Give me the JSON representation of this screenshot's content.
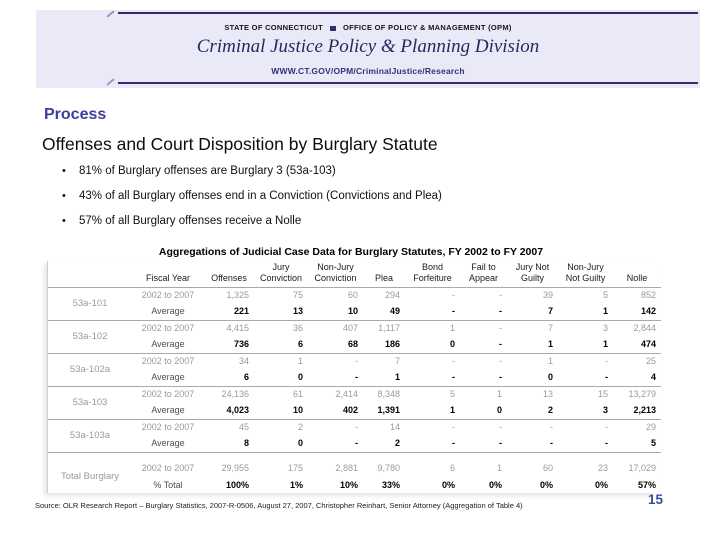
{
  "header": {
    "agency_left": "STATE OF CONNECTICUT",
    "agency_right": "OFFICE OF POLICY & MANAGEMENT (OPM)",
    "division_title": "Criminal Justice Policy & Planning Division",
    "url": "WWW.CT.GOV/OPM/CriminalJustice/Research"
  },
  "section_title": "Process",
  "slide_title": "Offenses and Court Disposition by Burglary Statute",
  "bullets": [
    "81% of Burglary offenses are Burglary 3 (53a-103)",
    "43% of all Burglary offenses end in a Conviction (Convictions and Plea)",
    "57% of all Burglary offenses receive a Nolle"
  ],
  "table": {
    "title": "Aggregations of Judicial Case Data for Burglary Statutes, FY 2002 to FY 2007",
    "columns": [
      "",
      "Fiscal Year",
      "Offenses",
      "Jury Conviction",
      "Non-Jury Conviction",
      "Plea",
      "Bond Forfeiture",
      "Fail to Appear",
      "Jury Not Guilty",
      "Non-Jury Not Guilty",
      "Nolle"
    ],
    "groups": [
      {
        "statute": "53a-101",
        "bold_statute": true,
        "separated": false,
        "rows": [
          {
            "label": "2002 to 2007",
            "grey": true,
            "values": [
              "1,325",
              "75",
              "60",
              "294",
              "-",
              "-",
              "39",
              "5",
              "852"
            ]
          },
          {
            "label": "Average",
            "grey": false,
            "values": [
              "221",
              "13",
              "10",
              "49",
              "-",
              "-",
              "7",
              "1",
              "142"
            ]
          }
        ]
      },
      {
        "statute": "53a-102",
        "bold_statute": true,
        "separated": false,
        "rows": [
          {
            "label": "2002 to 2007",
            "grey": true,
            "values": [
              "4,415",
              "36",
              "407",
              "1,117",
              "1",
              "-",
              "7",
              "3",
              "2,844"
            ]
          },
          {
            "label": "Average",
            "grey": false,
            "values": [
              "736",
              "6",
              "68",
              "186",
              "0",
              "-",
              "1",
              "1",
              "474"
            ]
          }
        ]
      },
      {
        "statute": "53a-102a",
        "bold_statute": true,
        "separated": false,
        "rows": [
          {
            "label": "2002 to 2007",
            "grey": true,
            "values": [
              "34",
              "1",
              "-",
              "7",
              "-",
              "-",
              "1",
              "-",
              "25"
            ]
          },
          {
            "label": "Average",
            "grey": false,
            "values": [
              "6",
              "0",
              "-",
              "1",
              "-",
              "-",
              "0",
              "-",
              "4"
            ]
          }
        ]
      },
      {
        "statute": "53a-103",
        "bold_statute": true,
        "separated": false,
        "rows": [
          {
            "label": "2002 to 2007",
            "grey": true,
            "values": [
              "24,136",
              "61",
              "2,414",
              "8,348",
              "5",
              "1",
              "13",
              "15",
              "13,279"
            ]
          },
          {
            "label": "Average",
            "grey": false,
            "values": [
              "4,023",
              "10",
              "402",
              "1,391",
              "1",
              "0",
              "2",
              "3",
              "2,213"
            ]
          }
        ]
      },
      {
        "statute": "53a-103a",
        "bold_statute": true,
        "separated": false,
        "rows": [
          {
            "label": "2002 to 2007",
            "grey": true,
            "values": [
              "45",
              "2",
              "-",
              "14",
              "-",
              "-",
              "-",
              "-",
              "29"
            ]
          },
          {
            "label": "Average",
            "grey": false,
            "values": [
              "8",
              "0",
              "-",
              "2",
              "-",
              "-",
              "-",
              "-",
              "5"
            ]
          }
        ]
      },
      {
        "statute": "Total Burglary",
        "bold_statute": false,
        "separated": true,
        "rows": [
          {
            "label": "2002 to 2007",
            "grey": true,
            "values": [
              "29,955",
              "175",
              "2,881",
              "9,780",
              "6",
              "1",
              "60",
              "23",
              "17,029"
            ]
          },
          {
            "label": "% Total",
            "grey": false,
            "values": [
              "100%",
              "1%",
              "10%",
              "33%",
              "0%",
              "0%",
              "0%",
              "0%",
              "57%"
            ]
          }
        ]
      }
    ]
  },
  "footer": {
    "source": "Source: OLR Research Report – Burglary Statistics, 2007-R-0506, August 27, 2007, Christopher Reinhart, Senior Attorney (Aggregation of Table 4)",
    "page_number": "15"
  },
  "colors": {
    "header_band": "#e9e9f8",
    "navy_rule": "#2d2d70",
    "division_title_text": "#28285e",
    "section_title_text": "#3d3d9e",
    "grey_row_text": "#9a9a9a",
    "page_number_text": "#3a4aa4"
  }
}
